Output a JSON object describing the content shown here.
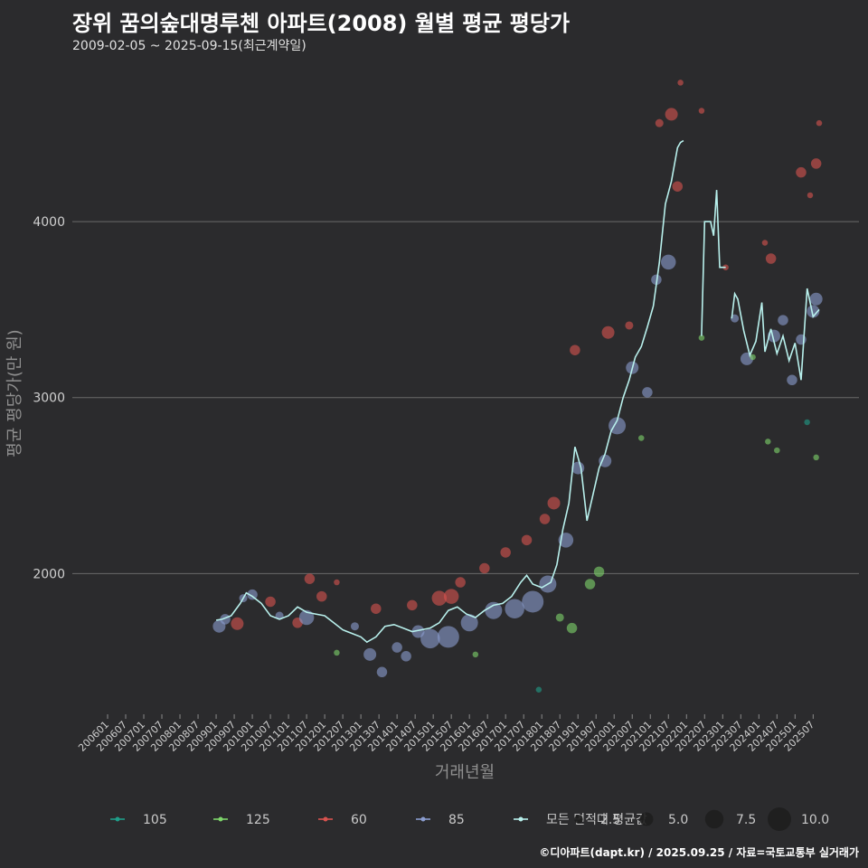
{
  "title": "장위 꿈의숲대명루첸 아파트(2008) 월별 평균 평당가",
  "subtitle": "2009-02-05 ~ 2025-09-15(최근계약일)",
  "caption": "©디아파트(dapt.kr) / 2025.09.25 / 자료=국토교통부 실거래가",
  "colors": {
    "background": "#2b2b2d",
    "grid": "#6a6a6a",
    "s105": "#1f9e89",
    "s125": "#7ed66b",
    "s60": "#d9534f",
    "s85": "#8a9ccf",
    "avg_line": "#b8f0ec"
  },
  "chart_data": {
    "type": "scatter",
    "title": "장위 꿈의숲대명루첸 아파트(2008) 월별 평균 평당가",
    "xlabel": "거래년월",
    "ylabel": "평균 평당가(만 원)",
    "ylim": [
      1200,
      4900
    ],
    "yticks": [
      2000,
      3000,
      4000
    ],
    "x_start": "2006-01",
    "x_end": "2025-09",
    "xticks": [
      "200601",
      "200607",
      "200701",
      "200707",
      "200801",
      "200807",
      "200901",
      "200907",
      "201001",
      "201007",
      "201101",
      "201107",
      "201201",
      "201207",
      "201301",
      "201307",
      "201401",
      "201407",
      "201501",
      "201507",
      "201601",
      "201607",
      "201701",
      "201707",
      "201801",
      "201807",
      "201901",
      "201907",
      "202001",
      "202007",
      "202101",
      "202107",
      "202201",
      "202207",
      "202301",
      "202307",
      "202401",
      "202407",
      "202501",
      "202507"
    ],
    "legend_series": [
      {
        "name": "105",
        "color_key": "s105"
      },
      {
        "name": "125",
        "color_key": "s125"
      },
      {
        "name": "60",
        "color_key": "s60"
      },
      {
        "name": "85",
        "color_key": "s85"
      },
      {
        "name": "모든 면적대 평균값",
        "color_key": "avg_line"
      }
    ],
    "legend_sizes": [
      2.5,
      5.0,
      7.5,
      10.0
    ],
    "size_labels": [
      "2.5",
      "5.0",
      "7.5",
      "10.0"
    ],
    "avg_line": [
      [
        "2009-01",
        1735
      ],
      [
        "2009-03",
        1740
      ],
      [
        "2009-06",
        1760
      ],
      [
        "2009-09",
        1830
      ],
      [
        "2009-11",
        1890
      ],
      [
        "2010-01",
        1870
      ],
      [
        "2010-04",
        1830
      ],
      [
        "2010-07",
        1760
      ],
      [
        "2010-10",
        1740
      ],
      [
        "2011-01",
        1760
      ],
      [
        "2011-04",
        1810
      ],
      [
        "2011-07",
        1780
      ],
      [
        "2011-10",
        1770
      ],
      [
        "2012-01",
        1760
      ],
      [
        "2012-04",
        1720
      ],
      [
        "2012-07",
        1680
      ],
      [
        "2012-10",
        1660
      ],
      [
        "2013-01",
        1640
      ],
      [
        "2013-03",
        1610
      ],
      [
        "2013-06",
        1640
      ],
      [
        "2013-09",
        1700
      ],
      [
        "2013-12",
        1710
      ],
      [
        "2014-03",
        1690
      ],
      [
        "2014-06",
        1670
      ],
      [
        "2014-09",
        1680
      ],
      [
        "2014-12",
        1690
      ],
      [
        "2015-03",
        1720
      ],
      [
        "2015-06",
        1790
      ],
      [
        "2015-09",
        1810
      ],
      [
        "2015-12",
        1770
      ],
      [
        "2016-03",
        1750
      ],
      [
        "2016-06",
        1790
      ],
      [
        "2016-09",
        1820
      ],
      [
        "2016-12",
        1830
      ],
      [
        "2017-03",
        1870
      ],
      [
        "2017-06",
        1950
      ],
      [
        "2017-08",
        1990
      ],
      [
        "2017-10",
        1940
      ],
      [
        "2018-01",
        1920
      ],
      [
        "2018-04",
        1950
      ],
      [
        "2018-06",
        2050
      ],
      [
        "2018-08",
        2250
      ],
      [
        "2018-10",
        2400
      ],
      [
        "2018-12",
        2720
      ],
      [
        "2019-02",
        2600
      ],
      [
        "2019-04",
        2300
      ],
      [
        "2019-06",
        2450
      ],
      [
        "2019-08",
        2600
      ],
      [
        "2019-10",
        2680
      ],
      [
        "2019-12",
        2810
      ],
      [
        "2020-02",
        2870
      ],
      [
        "2020-04",
        3000
      ],
      [
        "2020-06",
        3100
      ],
      [
        "2020-08",
        3230
      ],
      [
        "2020-10",
        3290
      ],
      [
        "2020-12",
        3400
      ],
      [
        "2021-02",
        3520
      ],
      [
        "2021-04",
        3770
      ],
      [
        "2021-06",
        4100
      ],
      [
        "2021-08",
        4230
      ],
      [
        "2021-10",
        4420
      ],
      [
        "2021-11",
        4450
      ],
      [
        "2021-12",
        4460
      ],
      null,
      [
        "2022-06",
        3350
      ],
      [
        "2022-07",
        4000
      ],
      [
        "2022-09",
        4000
      ],
      [
        "2022-10",
        3920
      ],
      [
        "2022-11",
        4180
      ],
      [
        "2022-12",
        3740
      ],
      [
        "2023-02",
        3740
      ],
      null,
      [
        "2023-04",
        3450
      ],
      [
        "2023-05",
        3590
      ],
      [
        "2023-06",
        3560
      ],
      [
        "2023-08",
        3380
      ],
      [
        "2023-10",
        3240
      ],
      [
        "2023-12",
        3320
      ],
      [
        "2024-02",
        3540
      ],
      [
        "2024-03",
        3260
      ],
      [
        "2024-05",
        3390
      ],
      [
        "2024-07",
        3250
      ],
      [
        "2024-09",
        3350
      ],
      [
        "2024-11",
        3210
      ],
      [
        "2025-01",
        3310
      ],
      [
        "2025-03",
        3100
      ],
      [
        "2025-05",
        3620
      ],
      [
        "2025-07",
        3460
      ],
      [
        "2025-09",
        3500
      ]
    ],
    "points": [
      {
        "series": "85",
        "x": "2009-02",
        "y": 1700,
        "size": 4
      },
      {
        "series": "85",
        "x": "2009-04",
        "y": 1740,
        "size": 3
      },
      {
        "series": "60",
        "x": "2009-08",
        "y": 1715,
        "size": 4
      },
      {
        "series": "85",
        "x": "2009-10",
        "y": 1860,
        "size": 2
      },
      {
        "series": "85",
        "x": "2010-01",
        "y": 1880,
        "size": 3
      },
      {
        "series": "60",
        "x": "2010-07",
        "y": 1840,
        "size": 3
      },
      {
        "series": "85",
        "x": "2010-10",
        "y": 1760,
        "size": 2
      },
      {
        "series": "60",
        "x": "2011-04",
        "y": 1720,
        "size": 3
      },
      {
        "series": "85",
        "x": "2011-07",
        "y": 1750,
        "size": 5
      },
      {
        "series": "60",
        "x": "2011-08",
        "y": 1970,
        "size": 3
      },
      {
        "series": "60",
        "x": "2011-12",
        "y": 1870,
        "size": 3
      },
      {
        "series": "60",
        "x": "2012-05",
        "y": 1950,
        "size": 1
      },
      {
        "series": "125",
        "x": "2012-05",
        "y": 1550,
        "size": 1
      },
      {
        "series": "85",
        "x": "2012-11",
        "y": 1700,
        "size": 2
      },
      {
        "series": "60",
        "x": "2013-06",
        "y": 1800,
        "size": 3
      },
      {
        "series": "85",
        "x": "2013-04",
        "y": 1540,
        "size": 4
      },
      {
        "series": "85",
        "x": "2013-08",
        "y": 1440,
        "size": 3
      },
      {
        "series": "85",
        "x": "2014-01",
        "y": 1580,
        "size": 3
      },
      {
        "series": "85",
        "x": "2014-04",
        "y": 1530,
        "size": 3
      },
      {
        "series": "60",
        "x": "2014-06",
        "y": 1820,
        "size": 3
      },
      {
        "series": "85",
        "x": "2014-08",
        "y": 1670,
        "size": 4
      },
      {
        "series": "85",
        "x": "2014-12",
        "y": 1630,
        "size": 7
      },
      {
        "series": "60",
        "x": "2015-03",
        "y": 1860,
        "size": 5
      },
      {
        "series": "85",
        "x": "2015-06",
        "y": 1640,
        "size": 8
      },
      {
        "series": "60",
        "x": "2015-07",
        "y": 1870,
        "size": 5
      },
      {
        "series": "60",
        "x": "2015-10",
        "y": 1950,
        "size": 3
      },
      {
        "series": "85",
        "x": "2016-01",
        "y": 1720,
        "size": 6
      },
      {
        "series": "60",
        "x": "2016-06",
        "y": 2030,
        "size": 3
      },
      {
        "series": "125",
        "x": "2016-03",
        "y": 1540,
        "size": 1
      },
      {
        "series": "85",
        "x": "2016-09",
        "y": 1790,
        "size": 6
      },
      {
        "series": "60",
        "x": "2017-01",
        "y": 2120,
        "size": 3
      },
      {
        "series": "85",
        "x": "2017-04",
        "y": 1800,
        "size": 7
      },
      {
        "series": "60",
        "x": "2017-08",
        "y": 2190,
        "size": 3
      },
      {
        "series": "85",
        "x": "2017-10",
        "y": 1840,
        "size": 8
      },
      {
        "series": "105",
        "x": "2017-12",
        "y": 1340,
        "size": 1
      },
      {
        "series": "60",
        "x": "2018-02",
        "y": 2310,
        "size": 3
      },
      {
        "series": "85",
        "x": "2018-03",
        "y": 1940,
        "size": 6
      },
      {
        "series": "60",
        "x": "2018-05",
        "y": 2400,
        "size": 4
      },
      {
        "series": "125",
        "x": "2018-07",
        "y": 1750,
        "size": 2
      },
      {
        "series": "85",
        "x": "2018-09",
        "y": 2190,
        "size": 5
      },
      {
        "series": "125",
        "x": "2018-11",
        "y": 1690,
        "size": 3
      },
      {
        "series": "60",
        "x": "2018-12",
        "y": 3270,
        "size": 3
      },
      {
        "series": "85",
        "x": "2019-01",
        "y": 2600,
        "size": 4
      },
      {
        "series": "125",
        "x": "2019-05",
        "y": 1940,
        "size": 3
      },
      {
        "series": "125",
        "x": "2019-08",
        "y": 2010,
        "size": 3
      },
      {
        "series": "85",
        "x": "2019-10",
        "y": 2640,
        "size": 4
      },
      {
        "series": "60",
        "x": "2019-11",
        "y": 3370,
        "size": 4
      },
      {
        "series": "85",
        "x": "2020-02",
        "y": 2840,
        "size": 6
      },
      {
        "series": "60",
        "x": "2020-06",
        "y": 3410,
        "size": 2
      },
      {
        "series": "85",
        "x": "2020-07",
        "y": 3170,
        "size": 4
      },
      {
        "series": "125",
        "x": "2020-10",
        "y": 2770,
        "size": 1
      },
      {
        "series": "85",
        "x": "2020-12",
        "y": 3030,
        "size": 3
      },
      {
        "series": "85",
        "x": "2021-03",
        "y": 3670,
        "size": 3
      },
      {
        "series": "60",
        "x": "2021-04",
        "y": 4560,
        "size": 2
      },
      {
        "series": "85",
        "x": "2021-07",
        "y": 3770,
        "size": 5
      },
      {
        "series": "60",
        "x": "2021-08",
        "y": 4610,
        "size": 4
      },
      {
        "series": "60",
        "x": "2021-10",
        "y": 4200,
        "size": 3
      },
      {
        "series": "60",
        "x": "2021-11",
        "y": 4790,
        "size": 1
      },
      {
        "series": "60",
        "x": "2022-06",
        "y": 4630,
        "size": 1
      },
      {
        "series": "125",
        "x": "2022-06",
        "y": 3340,
        "size": 1
      },
      {
        "series": "60",
        "x": "2023-02",
        "y": 3740,
        "size": 1
      },
      {
        "series": "85",
        "x": "2023-05",
        "y": 3450,
        "size": 2
      },
      {
        "series": "85",
        "x": "2023-09",
        "y": 3220,
        "size": 4
      },
      {
        "series": "125",
        "x": "2023-11",
        "y": 3230,
        "size": 1
      },
      {
        "series": "60",
        "x": "2024-03",
        "y": 3880,
        "size": 1
      },
      {
        "series": "125",
        "x": "2024-04",
        "y": 2750,
        "size": 1
      },
      {
        "series": "60",
        "x": "2024-05",
        "y": 3790,
        "size": 3
      },
      {
        "series": "85",
        "x": "2024-06",
        "y": 3350,
        "size": 4
      },
      {
        "series": "125",
        "x": "2024-07",
        "y": 2700,
        "size": 1
      },
      {
        "series": "85",
        "x": "2024-09",
        "y": 3440,
        "size": 3
      },
      {
        "series": "85",
        "x": "2024-12",
        "y": 3100,
        "size": 3
      },
      {
        "series": "85",
        "x": "2025-03",
        "y": 3330,
        "size": 3
      },
      {
        "series": "60",
        "x": "2025-03",
        "y": 4280,
        "size": 3
      },
      {
        "series": "105",
        "x": "2025-05",
        "y": 2860,
        "size": 1
      },
      {
        "series": "60",
        "x": "2025-06",
        "y": 4150,
        "size": 1
      },
      {
        "series": "85",
        "x": "2025-07",
        "y": 3490,
        "size": 4
      },
      {
        "series": "60",
        "x": "2025-08",
        "y": 4330,
        "size": 3
      },
      {
        "series": "85",
        "x": "2025-08",
        "y": 3560,
        "size": 4
      },
      {
        "series": "125",
        "x": "2025-08",
        "y": 2660,
        "size": 1
      },
      {
        "series": "60",
        "x": "2025-09",
        "y": 4560,
        "size": 1
      }
    ]
  }
}
